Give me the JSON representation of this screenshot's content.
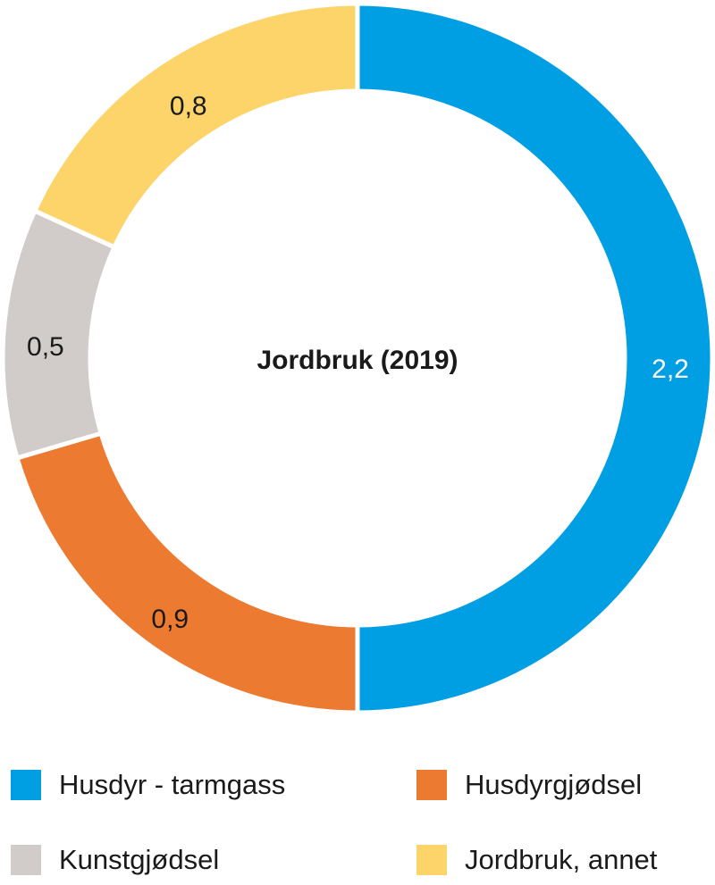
{
  "chart_data": {
    "type": "pie",
    "variant": "donut",
    "title": "Jordbruk (2019)",
    "categories": [
      "Husdyr - tarmgass",
      "Husdyrgjødsel",
      "Kunstgjødsel",
      "Jordbruk, annet"
    ],
    "values": [
      2.2,
      0.9,
      0.5,
      0.8
    ],
    "labels": [
      "2,2",
      "0,9",
      "0,5",
      "0,8"
    ],
    "colors": [
      "#009fe3",
      "#ec7a31",
      "#d1ccc9",
      "#fdd46a"
    ],
    "label_colors": [
      "#ffffff",
      "#1a1a1a",
      "#1a1a1a",
      "#1a1a1a"
    ],
    "direction": "clockwise from top",
    "legend_position": "bottom"
  }
}
